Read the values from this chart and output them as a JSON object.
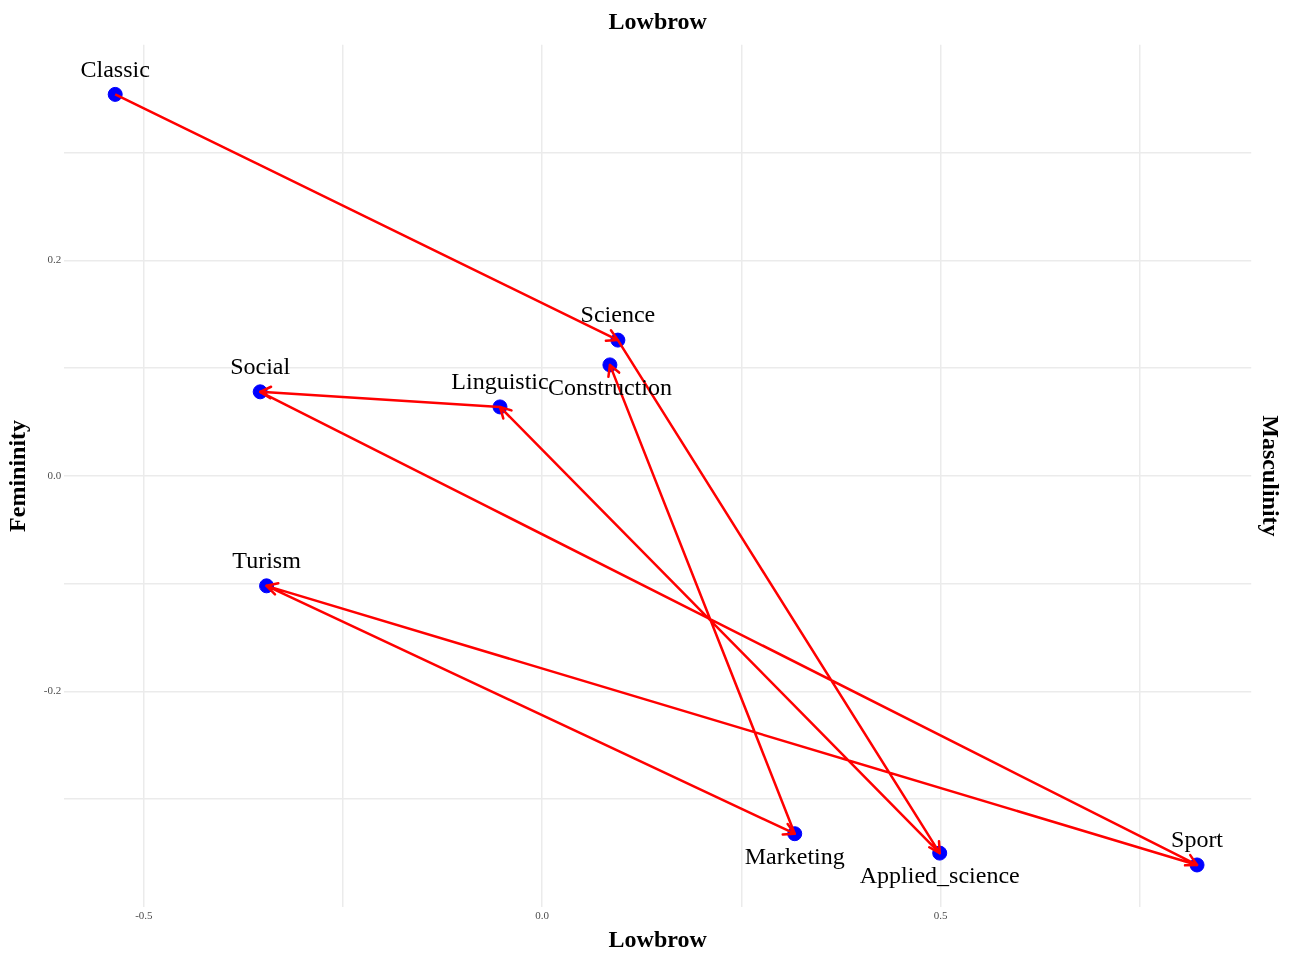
{
  "chart_data": {
    "type": "scatter",
    "xlabel": "Lowbrow",
    "x2label": "Lowbrow",
    "ylabel": "Femininity",
    "y2label": "Masculinity",
    "xlim": [
      -0.6,
      0.89
    ],
    "ylim": [
      -0.4,
      0.4
    ],
    "xticks": [
      -0.5,
      {
        "value": -0.25,
        "label": null
      },
      {
        "value": 0,
        "label": "0.0"
      },
      {
        "value": 0.25,
        "label": null
      },
      0.5,
      {
        "value": 0.75,
        "label": null
      }
    ],
    "yticks": [
      {
        "value": -0.3,
        "label": null
      },
      -0.2,
      {
        "value": -0.1,
        "label": null
      },
      {
        "value": 0,
        "label": "0.0"
      },
      {
        "value": 0.1,
        "label": null
      },
      0.2,
      {
        "value": 0.3,
        "label": null
      }
    ],
    "grid": true,
    "series": [
      {
        "marker": "circle",
        "color": "#0000ff",
        "x": [
          -0.536,
          0.095,
          0.085,
          -0.053,
          -0.354,
          -0.346,
          0.317,
          0.499,
          0.822
        ],
        "values": [
          0.354,
          0.126,
          0.103,
          0.064,
          0.078,
          -0.102,
          -0.332,
          -0.35,
          -0.361
        ]
      },
      {
        "type": "line",
        "marker": "none",
        "color": "#ff0000",
        "x": [
          -0.536,
          0.095,
          0.499,
          -0.053,
          -0.354,
          0.822,
          -0.346,
          0.317,
          0.085
        ],
        "values": [
          0.354,
          0.126,
          -0.35,
          0.064,
          0.078,
          -0.361,
          -0.102,
          -0.332,
          0.103
        ]
      }
    ],
    "annotations": [
      {
        "text": "Classic",
        "x": -0.536,
        "y": 0.354
      },
      {
        "text": "Science",
        "x": 0.095,
        "y": 0.126
      },
      {
        "text": "Construction",
        "x": 0.085,
        "y": 0.103
      },
      {
        "text": "Linguistic",
        "x": -0.053,
        "y": 0.064
      },
      {
        "text": "Social",
        "x": -0.354,
        "y": 0.078
      },
      {
        "text": "Turism",
        "x": -0.346,
        "y": -0.102
      },
      {
        "text": "Marketing",
        "x": 0.317,
        "y": -0.332
      },
      {
        "text": "Applied_science",
        "x": 0.499,
        "y": -0.35
      },
      {
        "text": "Sport",
        "x": 0.822,
        "y": -0.361
      }
    ]
  }
}
